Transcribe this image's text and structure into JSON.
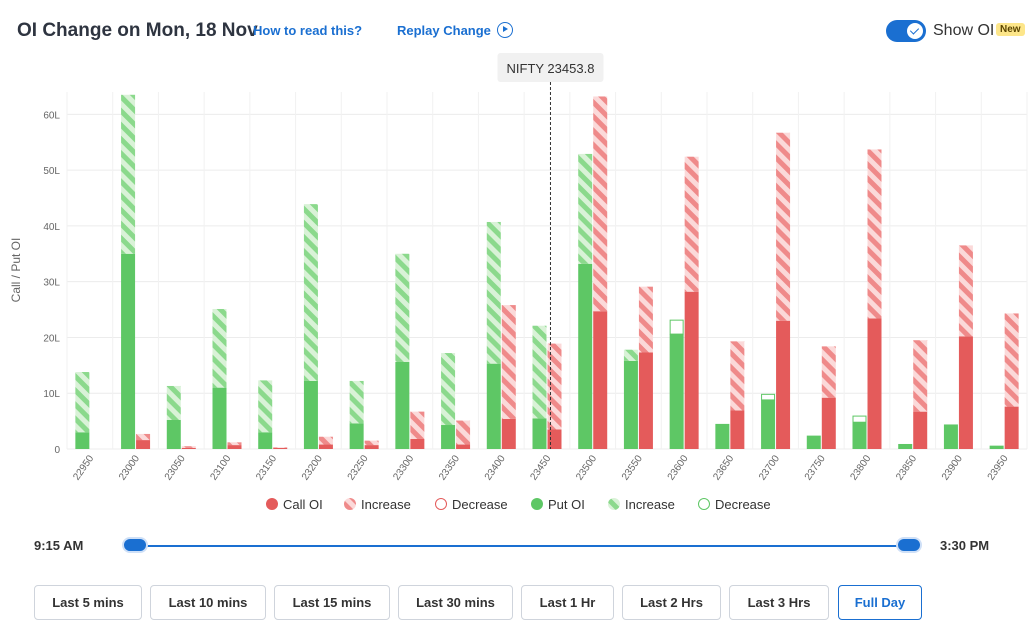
{
  "header": {
    "title": "OI Change on Mon, 18 Nov",
    "how_to_read": "How to read this?",
    "replay": "Replay Change",
    "show_oi_label": "Show OI",
    "new_badge": "New",
    "show_oi_enabled": true
  },
  "colors": {
    "call": "#e45b5b",
    "call_light": "#f3a7a7",
    "put": "#5ec765",
    "put_light": "#b6e3b4",
    "accent": "#1a6fd1"
  },
  "chart_data": {
    "type": "bar",
    "ylabel": "Call / Put OI",
    "ylim": [
      0,
      64
    ],
    "yticks": [
      0,
      10,
      20,
      30,
      40,
      50,
      60
    ],
    "ytick_labels": [
      "0",
      "10L",
      "20L",
      "30L",
      "40L",
      "50L",
      "60L"
    ],
    "spot_label": "NIFTY 23453.8",
    "spot_value": 23453.8,
    "categories": [
      "22950",
      "23000",
      "23050",
      "23100",
      "23150",
      "23200",
      "23250",
      "23300",
      "23350",
      "23400",
      "23450",
      "23500",
      "23550",
      "23600",
      "23650",
      "23700",
      "23750",
      "23800",
      "23850",
      "23900",
      "23950"
    ],
    "series": [
      {
        "name": "Put OI",
        "side": "put",
        "base": [
          3,
          35,
          5.2,
          11,
          3,
          12.2,
          4.6,
          15.6,
          4.3,
          15.3,
          5.5,
          33.2,
          15.8,
          20.6,
          4.5,
          8.8,
          2.4,
          4.8,
          0.9,
          4.4,
          0.6
        ],
        "increase": [
          10.8,
          28.5,
          6.1,
          14.1,
          9.3,
          31.7,
          7.6,
          19.4,
          12.9,
          25.4,
          16.6,
          19.7,
          2,
          0,
          0,
          0,
          0,
          0,
          0,
          0,
          0
        ],
        "decrease": [
          0,
          0,
          0,
          0,
          0,
          0,
          0,
          0,
          0,
          0,
          0,
          0,
          0,
          2.5,
          0,
          1,
          0,
          1.1,
          0,
          0,
          0
        ]
      },
      {
        "name": "Call OI",
        "side": "call",
        "base": [
          0,
          1.6,
          0.2,
          0.7,
          0.2,
          0.8,
          0.7,
          1.8,
          0.8,
          5.4,
          3.5,
          24.7,
          17.3,
          28.2,
          6.9,
          23,
          9.2,
          23.4,
          6.7,
          20.2,
          7.6
        ],
        "increase": [
          0,
          1.1,
          0.3,
          0.5,
          0.1,
          1.4,
          0.8,
          4.9,
          4.3,
          20.4,
          15.4,
          38.5,
          11.8,
          24.2,
          12.4,
          33.7,
          9.2,
          30.3,
          12.8,
          16.3,
          16.7
        ],
        "decrease": [
          0,
          0,
          0,
          0,
          0,
          0,
          0,
          0,
          0,
          0,
          0,
          0,
          0,
          0,
          0,
          0,
          0,
          0,
          0,
          0,
          0
        ]
      }
    ],
    "legend": [
      {
        "label": "Call OI",
        "kind": "call-solid"
      },
      {
        "label": "Increase",
        "kind": "call-increase"
      },
      {
        "label": "Decrease",
        "kind": "call-decrease"
      },
      {
        "label": "Put OI",
        "kind": "put-solid"
      },
      {
        "label": "Increase",
        "kind": "put-increase"
      },
      {
        "label": "Decrease",
        "kind": "put-decrease"
      }
    ],
    "legend_position": "bottom-center",
    "grid": true
  },
  "time_range": {
    "start": "9:15 AM",
    "end": "3:30 PM"
  },
  "range_buttons": [
    {
      "label": "Last 5 mins",
      "active": false
    },
    {
      "label": "Last 10 mins",
      "active": false
    },
    {
      "label": "Last 15 mins",
      "active": false
    },
    {
      "label": "Last 30 mins",
      "active": false
    },
    {
      "label": "Last 1 Hr",
      "active": false
    },
    {
      "label": "Last 2 Hrs",
      "active": false
    },
    {
      "label": "Last 3 Hrs",
      "active": false
    },
    {
      "label": "Full Day",
      "active": true
    }
  ]
}
